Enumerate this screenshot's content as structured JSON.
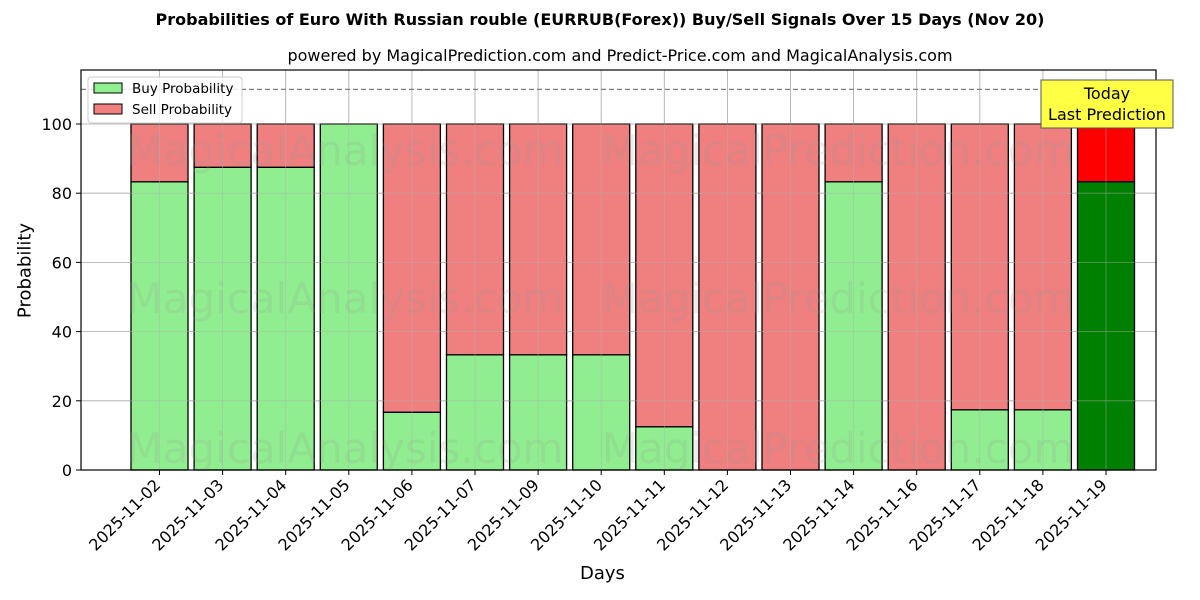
{
  "chart_data": {
    "type": "bar",
    "stacked": true,
    "title": "Probabilities of Euro With Russian rouble (EURRUB(Forex)) Buy/Sell Signals Over 15 Days (Nov 20)",
    "subtitle": "powered by MagicalPrediction.com and Predict-Price.com and MagicalAnalysis.com",
    "xlabel": "Days",
    "ylabel": "Probability",
    "ylim": [
      0,
      115
    ],
    "yticks": [
      0,
      20,
      40,
      60,
      80,
      100
    ],
    "grid": true,
    "legend_position": "upper left",
    "reference_line": {
      "y": 110,
      "style": "dashed",
      "color": "#808080"
    },
    "categories": [
      "2025-11-02",
      "2025-11-03",
      "2025-11-04",
      "2025-11-05",
      "2025-11-06",
      "2025-11-07",
      "2025-11-09",
      "2025-11-10",
      "2025-11-11",
      "2025-11-12",
      "2025-11-13",
      "2025-11-14",
      "2025-11-16",
      "2025-11-17",
      "2025-11-18",
      "2025-11-19"
    ],
    "series": [
      {
        "name": "Buy Probability",
        "color": "#90ee90",
        "values": [
          83.3,
          87.5,
          87.5,
          100,
          16.7,
          33.3,
          33.3,
          33.3,
          12.5,
          0,
          0,
          83.3,
          0,
          17.4,
          17.4,
          83.3
        ]
      },
      {
        "name": "Sell Probability",
        "color": "#f08080",
        "values": [
          16.7,
          12.5,
          12.5,
          0,
          83.3,
          66.7,
          66.7,
          66.7,
          87.5,
          100,
          100,
          16.7,
          100,
          82.6,
          82.6,
          16.7
        ]
      }
    ],
    "highlight": {
      "index": 15,
      "buy_color": "#008000",
      "sell_color": "#ff0000",
      "annotation": [
        "Today",
        "Last Prediction"
      ],
      "annotation_bg": "#ffff44"
    },
    "watermarks": [
      "MagicalAnalysis.com",
      "MagicalPrediction.com"
    ]
  }
}
